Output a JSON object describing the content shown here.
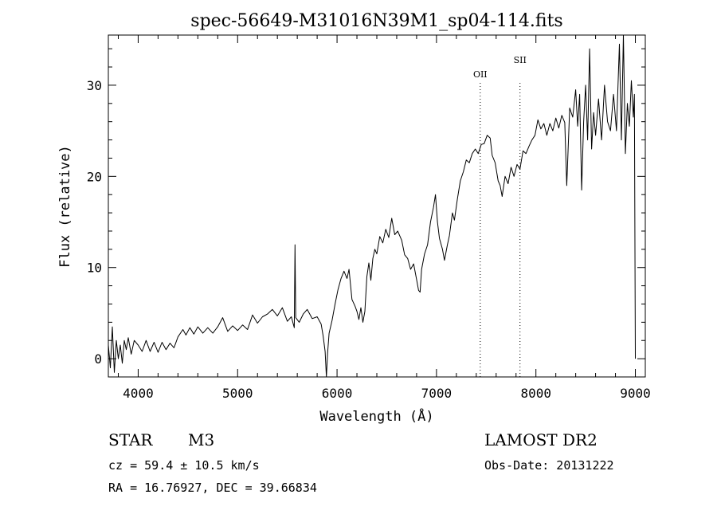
{
  "chart_data": {
    "type": "line",
    "title": "spec-56649-M31016N39M1_sp04-114.fits",
    "xlabel": "Wavelength (Å)",
    "ylabel": "Flux (relative)",
    "xlim": [
      3700,
      9100
    ],
    "ylim": [
      -2,
      35.5
    ],
    "xticks": [
      4000,
      5000,
      6000,
      7000,
      8000,
      9000
    ],
    "yticks": [
      0,
      10,
      20,
      30
    ],
    "grid": false,
    "line_color": "#000000",
    "series": [
      {
        "values": [
          [
            3700,
            1.5
          ],
          [
            3720,
            -1.0
          ],
          [
            3740,
            3.5
          ],
          [
            3760,
            -1.5
          ],
          [
            3780,
            2.0
          ],
          [
            3800,
            0.0
          ],
          [
            3820,
            1.5
          ],
          [
            3840,
            -0.5
          ],
          [
            3860,
            2.0
          ],
          [
            3880,
            1.0
          ],
          [
            3900,
            2.3
          ],
          [
            3930,
            0.5
          ],
          [
            3960,
            2.0
          ],
          [
            4000,
            1.5
          ],
          [
            4040,
            0.8
          ],
          [
            4080,
            2.0
          ],
          [
            4120,
            0.8
          ],
          [
            4160,
            1.8
          ],
          [
            4200,
            0.7
          ],
          [
            4240,
            1.8
          ],
          [
            4280,
            1.0
          ],
          [
            4320,
            1.7
          ],
          [
            4360,
            1.2
          ],
          [
            4400,
            2.4
          ],
          [
            4450,
            3.2
          ],
          [
            4480,
            2.6
          ],
          [
            4520,
            3.4
          ],
          [
            4560,
            2.7
          ],
          [
            4600,
            3.5
          ],
          [
            4650,
            2.8
          ],
          [
            4700,
            3.4
          ],
          [
            4750,
            2.8
          ],
          [
            4800,
            3.5
          ],
          [
            4850,
            4.5
          ],
          [
            4900,
            3.0
          ],
          [
            4950,
            3.6
          ],
          [
            5000,
            3.1
          ],
          [
            5050,
            3.7
          ],
          [
            5100,
            3.2
          ],
          [
            5150,
            4.8
          ],
          [
            5200,
            3.9
          ],
          [
            5250,
            4.6
          ],
          [
            5300,
            4.9
          ],
          [
            5350,
            5.4
          ],
          [
            5400,
            4.7
          ],
          [
            5450,
            5.6
          ],
          [
            5500,
            4.1
          ],
          [
            5540,
            4.6
          ],
          [
            5570,
            3.4
          ],
          [
            5577,
            12.5
          ],
          [
            5584,
            4.5
          ],
          [
            5620,
            4.0
          ],
          [
            5660,
            4.9
          ],
          [
            5700,
            5.4
          ],
          [
            5750,
            4.4
          ],
          [
            5800,
            4.6
          ],
          [
            5840,
            3.8
          ],
          [
            5860,
            2.5
          ],
          [
            5880,
            0.8
          ],
          [
            5893,
            -2.0
          ],
          [
            5905,
            0.6
          ],
          [
            5920,
            2.8
          ],
          [
            5950,
            4.2
          ],
          [
            5980,
            6.0
          ],
          [
            6010,
            7.6
          ],
          [
            6040,
            8.8
          ],
          [
            6070,
            9.6
          ],
          [
            6100,
            8.8
          ],
          [
            6120,
            9.8
          ],
          [
            6150,
            6.5
          ],
          [
            6180,
            5.8
          ],
          [
            6200,
            5.2
          ],
          [
            6220,
            4.3
          ],
          [
            6240,
            5.6
          ],
          [
            6260,
            4.0
          ],
          [
            6280,
            5.2
          ],
          [
            6300,
            9.0
          ],
          [
            6320,
            10.5
          ],
          [
            6340,
            8.6
          ],
          [
            6360,
            11.0
          ],
          [
            6380,
            12.0
          ],
          [
            6400,
            11.5
          ],
          [
            6430,
            13.4
          ],
          [
            6460,
            12.7
          ],
          [
            6490,
            14.2
          ],
          [
            6520,
            13.3
          ],
          [
            6550,
            15.4
          ],
          [
            6580,
            13.6
          ],
          [
            6610,
            14.0
          ],
          [
            6650,
            13.0
          ],
          [
            6680,
            11.4
          ],
          [
            6710,
            11.0
          ],
          [
            6740,
            9.8
          ],
          [
            6770,
            10.4
          ],
          [
            6800,
            8.7
          ],
          [
            6820,
            7.5
          ],
          [
            6835,
            7.3
          ],
          [
            6850,
            9.8
          ],
          [
            6880,
            11.5
          ],
          [
            6910,
            12.5
          ],
          [
            6940,
            15.0
          ],
          [
            6970,
            16.6
          ],
          [
            6990,
            18.0
          ],
          [
            7010,
            15.0
          ],
          [
            7030,
            13.2
          ],
          [
            7060,
            12.0
          ],
          [
            7080,
            10.8
          ],
          [
            7110,
            12.5
          ],
          [
            7130,
            13.5
          ],
          [
            7160,
            16.0
          ],
          [
            7180,
            15.2
          ],
          [
            7210,
            17.5
          ],
          [
            7240,
            19.5
          ],
          [
            7270,
            20.5
          ],
          [
            7300,
            21.8
          ],
          [
            7330,
            21.5
          ],
          [
            7360,
            22.5
          ],
          [
            7390,
            23.0
          ],
          [
            7420,
            22.5
          ],
          [
            7450,
            23.5
          ],
          [
            7480,
            23.6
          ],
          [
            7510,
            24.5
          ],
          [
            7540,
            24.2
          ],
          [
            7560,
            22.3
          ],
          [
            7590,
            21.5
          ],
          [
            7620,
            19.5
          ],
          [
            7640,
            19.0
          ],
          [
            7660,
            17.8
          ],
          [
            7690,
            20.0
          ],
          [
            7720,
            19.2
          ],
          [
            7750,
            21.0
          ],
          [
            7780,
            20.0
          ],
          [
            7810,
            21.3
          ],
          [
            7840,
            20.8
          ],
          [
            7870,
            22.8
          ],
          [
            7900,
            22.5
          ],
          [
            7930,
            23.3
          ],
          [
            7960,
            24.0
          ],
          [
            7990,
            24.5
          ],
          [
            8020,
            26.2
          ],
          [
            8050,
            25.2
          ],
          [
            8080,
            25.8
          ],
          [
            8110,
            24.5
          ],
          [
            8140,
            25.8
          ],
          [
            8170,
            25.0
          ],
          [
            8200,
            26.4
          ],
          [
            8230,
            25.3
          ],
          [
            8260,
            26.7
          ],
          [
            8290,
            25.9
          ],
          [
            8310,
            19.0
          ],
          [
            8340,
            27.5
          ],
          [
            8370,
            26.5
          ],
          [
            8400,
            29.5
          ],
          [
            8420,
            25.5
          ],
          [
            8440,
            29.0
          ],
          [
            8460,
            18.5
          ],
          [
            8480,
            26.0
          ],
          [
            8500,
            30.0
          ],
          [
            8520,
            24.0
          ],
          [
            8540,
            34.0
          ],
          [
            8560,
            23.0
          ],
          [
            8580,
            27.0
          ],
          [
            8600,
            24.5
          ],
          [
            8630,
            28.5
          ],
          [
            8660,
            24.0
          ],
          [
            8690,
            30.0
          ],
          [
            8720,
            26.0
          ],
          [
            8750,
            25.0
          ],
          [
            8780,
            29.0
          ],
          [
            8810,
            25.0
          ],
          [
            8840,
            34.5
          ],
          [
            8860,
            24.0
          ],
          [
            8880,
            35.5
          ],
          [
            8900,
            22.5
          ],
          [
            8920,
            28.0
          ],
          [
            8940,
            25.5
          ],
          [
            8960,
            30.5
          ],
          [
            8980,
            26.5
          ],
          [
            8990,
            29.0
          ],
          [
            9000,
            0.0
          ]
        ]
      }
    ],
    "annotations": [
      {
        "label": "OII",
        "wavelength": 7440,
        "style": "dotted"
      },
      {
        "label": "SII",
        "wavelength": 7840,
        "style": "dotted"
      }
    ]
  },
  "info": {
    "object_class": "STAR",
    "subclass": "M3",
    "survey": "LAMOST DR2",
    "cz_line": "cz = 59.4 ± 10.5 km/s",
    "obs_date_line": "Obs-Date: 20131222",
    "coords_line": "RA =  16.76927, DEC =  39.66834"
  }
}
